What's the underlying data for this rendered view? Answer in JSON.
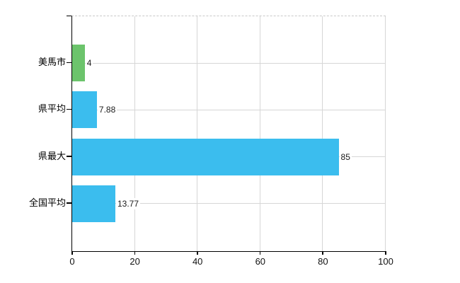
{
  "chart_data": {
    "type": "bar",
    "orientation": "horizontal",
    "title": "",
    "xlabel": "",
    "ylabel": "",
    "categories": [
      "美馬市",
      "県平均",
      "県最大",
      "全国平均"
    ],
    "values": [
      4,
      7.88,
      85,
      13.77
    ],
    "value_labels": [
      "4",
      "7.88",
      "85",
      "13.77"
    ],
    "bar_colors": [
      "#6cc46c",
      "#3bbdee",
      "#3bbdee",
      "#3bbdee"
    ],
    "xlim": [
      0,
      100
    ],
    "x_ticks": [
      0,
      20,
      40,
      60,
      80,
      100
    ],
    "x_tick_labels": [
      "0",
      "20",
      "40",
      "60",
      "80",
      "100"
    ],
    "grid": true,
    "legend": false
  },
  "colors": {
    "background": "#ffffff",
    "axis": "#000000",
    "gridline": "#d6d6d6",
    "top_border": "#c9c9c9",
    "bar_green": "#6cc46c",
    "bar_blue": "#3bbdee",
    "text": "#000000"
  }
}
